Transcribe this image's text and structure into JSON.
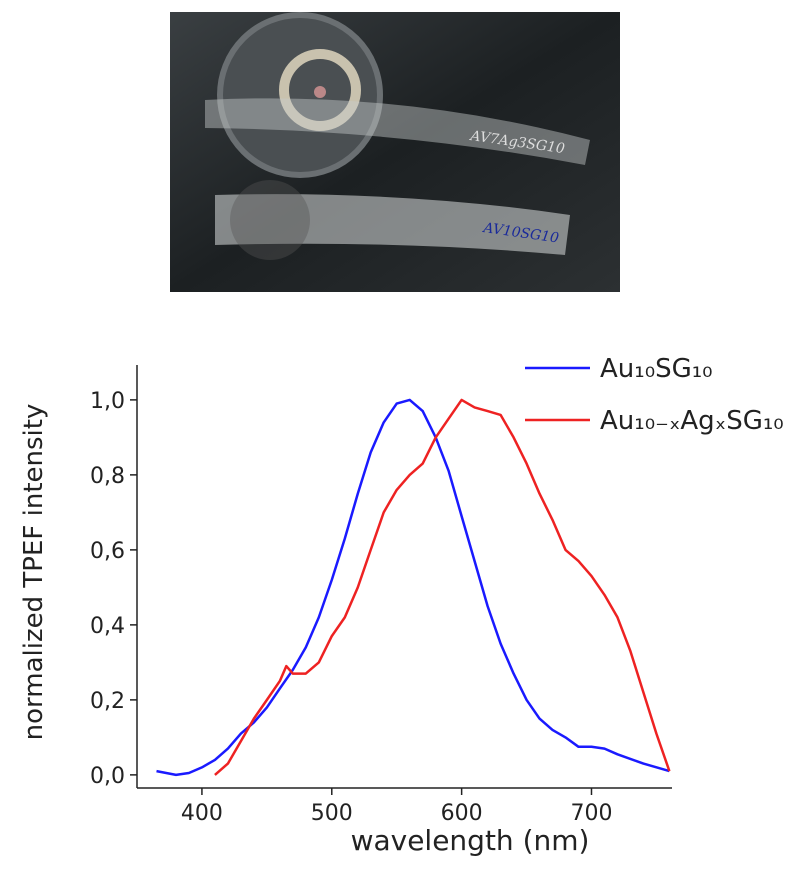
{
  "photo": {
    "labels": [
      "AV7Ag3SG10",
      "AV10SG10"
    ]
  },
  "chart_data": {
    "type": "line",
    "xlabel": "wavelength (nm)",
    "ylabel": "normalized TPEF intensity",
    "xlim": [
      350,
      762
    ],
    "ylim": [
      -0.035,
      1.093
    ],
    "xticks": [
      400,
      500,
      600,
      700
    ],
    "yticks": [
      {
        "value": 0,
        "label": "0,0"
      },
      {
        "value": 0.2,
        "label": "0,2"
      },
      {
        "value": 0.4,
        "label": "0,4"
      },
      {
        "value": 0.6,
        "label": "0,6"
      },
      {
        "value": 0.8,
        "label": "0,8"
      },
      {
        "value": 1.0,
        "label": "1,0"
      }
    ],
    "grid": false,
    "legend": "upper right",
    "series": [
      {
        "name": "Au₁₀SG₁₀",
        "color": "#1a1aff",
        "x": [
          365,
          380,
          390,
          400,
          410,
          420,
          430,
          440,
          450,
          460,
          470,
          480,
          490,
          500,
          510,
          520,
          530,
          540,
          550,
          560,
          570,
          580,
          590,
          600,
          610,
          620,
          630,
          640,
          650,
          660,
          670,
          680,
          690,
          700,
          710,
          720,
          740,
          760
        ],
        "values": [
          0.01,
          0.0,
          0.005,
          0.02,
          0.04,
          0.07,
          0.11,
          0.14,
          0.18,
          0.23,
          0.28,
          0.34,
          0.42,
          0.52,
          0.63,
          0.75,
          0.86,
          0.94,
          0.99,
          1.0,
          0.97,
          0.9,
          0.81,
          0.69,
          0.57,
          0.45,
          0.35,
          0.27,
          0.2,
          0.15,
          0.12,
          0.1,
          0.075,
          0.075,
          0.07,
          0.055,
          0.03,
          0.01
        ]
      },
      {
        "name": "Au₁₀₋ₓAgₓSG₁₀",
        "color": "#ee2222",
        "x": [
          410,
          420,
          430,
          440,
          450,
          460,
          465,
          470,
          480,
          490,
          500,
          510,
          520,
          530,
          540,
          550,
          560,
          570,
          580,
          590,
          600,
          610,
          620,
          630,
          640,
          650,
          660,
          670,
          680,
          690,
          700,
          710,
          720,
          730,
          740,
          750,
          760
        ],
        "values": [
          0.0,
          0.03,
          0.09,
          0.15,
          0.2,
          0.25,
          0.29,
          0.27,
          0.27,
          0.3,
          0.37,
          0.42,
          0.5,
          0.6,
          0.7,
          0.76,
          0.8,
          0.83,
          0.9,
          0.95,
          1.0,
          0.98,
          0.97,
          0.96,
          0.9,
          0.83,
          0.75,
          0.68,
          0.6,
          0.57,
          0.53,
          0.48,
          0.42,
          0.33,
          0.22,
          0.11,
          0.01
        ]
      }
    ]
  }
}
